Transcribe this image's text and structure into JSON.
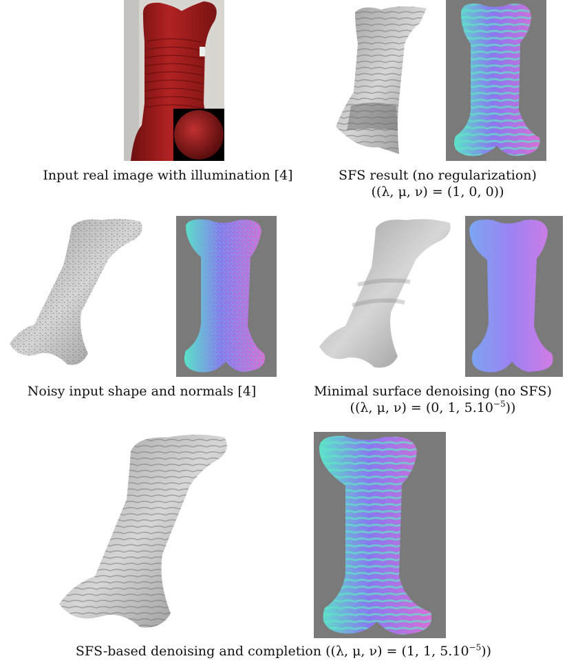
{
  "captions": {
    "input_real_image": "Input real image with illumination [4]",
    "sfs_result": "SFS result (no regularization)",
    "sfs_params": "((λ, μ, ν) = (1, 0, 0))",
    "noisy_input": "Noisy input shape and normals [4]",
    "minimal_surface": "Minimal surface denoising (no SFS)",
    "minimal_params_prefix": "((λ, μ, ν) = (0, 1, 5.10",
    "minimal_params_exp": "−5",
    "minimal_params_suffix": "))",
    "bottom_prefix": "SFS-based denoising and completion ((λ, μ, ν) = (1, 1, 5.10",
    "bottom_exp": "−5",
    "bottom_suffix": "))"
  },
  "colors": {
    "cloth_red": "#9e1b1b",
    "normal_bg_gray": "#7a7a7a",
    "mesh_gray": "#b9b9b9",
    "normal_magenta": "#c06bd8",
    "normal_cyan": "#58e0c9",
    "normal_blue": "#6c6cf0"
  }
}
